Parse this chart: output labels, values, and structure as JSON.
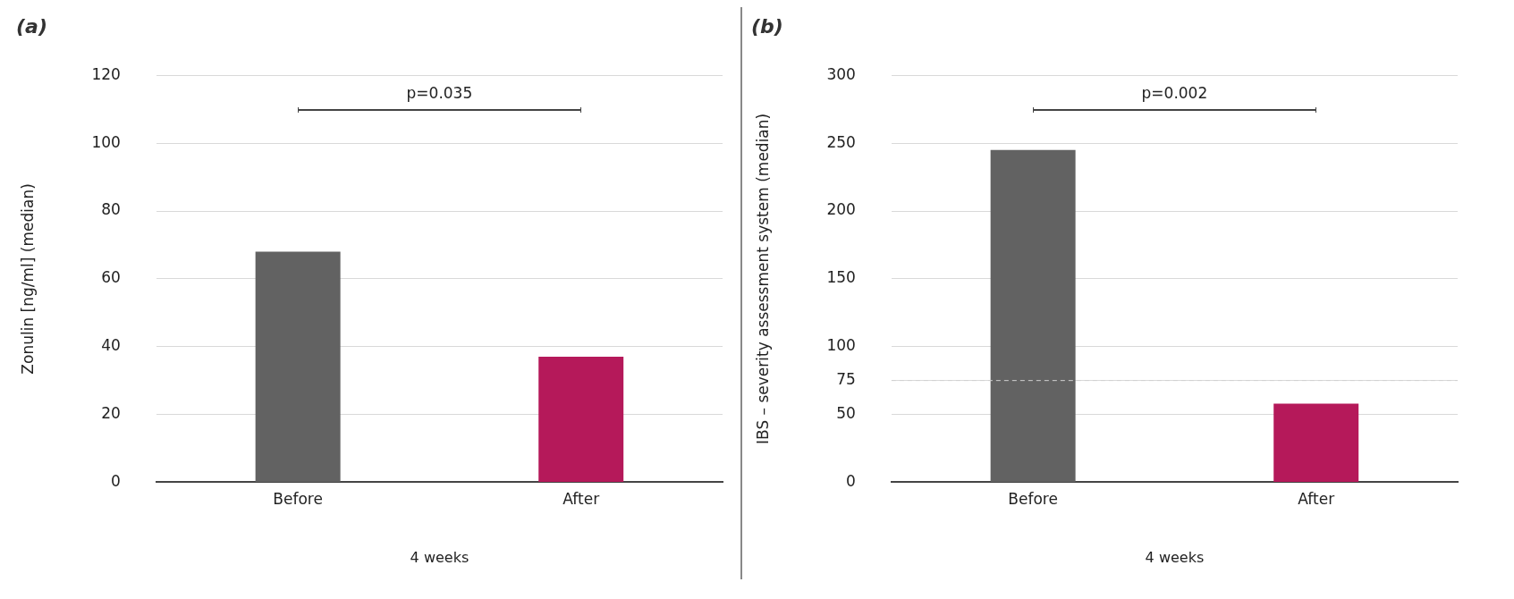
{
  "chart_data": [
    {
      "type": "bar",
      "title": "(a)",
      "ylabel": "Zonulin [ng/ml] (median)",
      "xlabel": "4 weeks",
      "categories": [
        "Before",
        "After"
      ],
      "values": [
        68,
        37
      ],
      "colors": [
        "#626262",
        "#b5195a"
      ],
      "ylim": [
        0,
        120
      ],
      "yticks": [
        0,
        20,
        40,
        60,
        80,
        100,
        120
      ],
      "grid": "y",
      "annotations": [
        "p=0.035"
      ]
    },
    {
      "type": "bar",
      "title": "(b)",
      "ylabel": "IBS – severity assessment system (median)",
      "xlabel": "4 weeks",
      "categories": [
        "Before",
        "After"
      ],
      "values": [
        245,
        58
      ],
      "colors": [
        "#626262",
        "#b5195a"
      ],
      "ylim": [
        0,
        300
      ],
      "yticks": [
        0,
        50,
        75,
        100,
        150,
        200,
        250,
        300
      ],
      "grid": "y",
      "ref_lines": [
        {
          "axis": "y",
          "value": 75,
          "color": "#d0d0d0",
          "line_style": "dashed"
        }
      ],
      "annotations": [
        "p=0.002"
      ]
    }
  ]
}
